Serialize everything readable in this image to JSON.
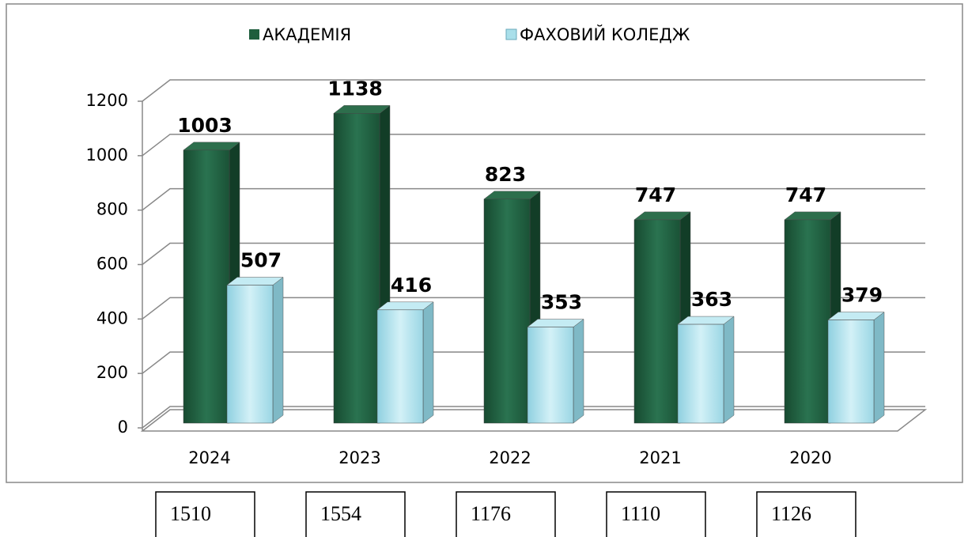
{
  "chart_data": {
    "type": "bar3d",
    "categories": [
      "2024",
      "2023",
      "2022",
      "2021",
      "2020"
    ],
    "series": [
      {
        "name": "АКАДЕМІЯ",
        "color": "#1f5e3d",
        "values": [
          1003,
          1138,
          823,
          747,
          747
        ]
      },
      {
        "name": "ФАХОВИЙ КОЛЕДЖ",
        "color": "#a9dfea",
        "values": [
          507,
          416,
          353,
          363,
          379
        ]
      }
    ],
    "ylim": [
      0,
      1200
    ],
    "yticks": [
      0,
      200,
      400,
      600,
      800,
      1000,
      1200
    ],
    "grid": true,
    "totals": [
      "1510",
      "1554",
      "1176",
      "1110",
      "1126"
    ]
  }
}
